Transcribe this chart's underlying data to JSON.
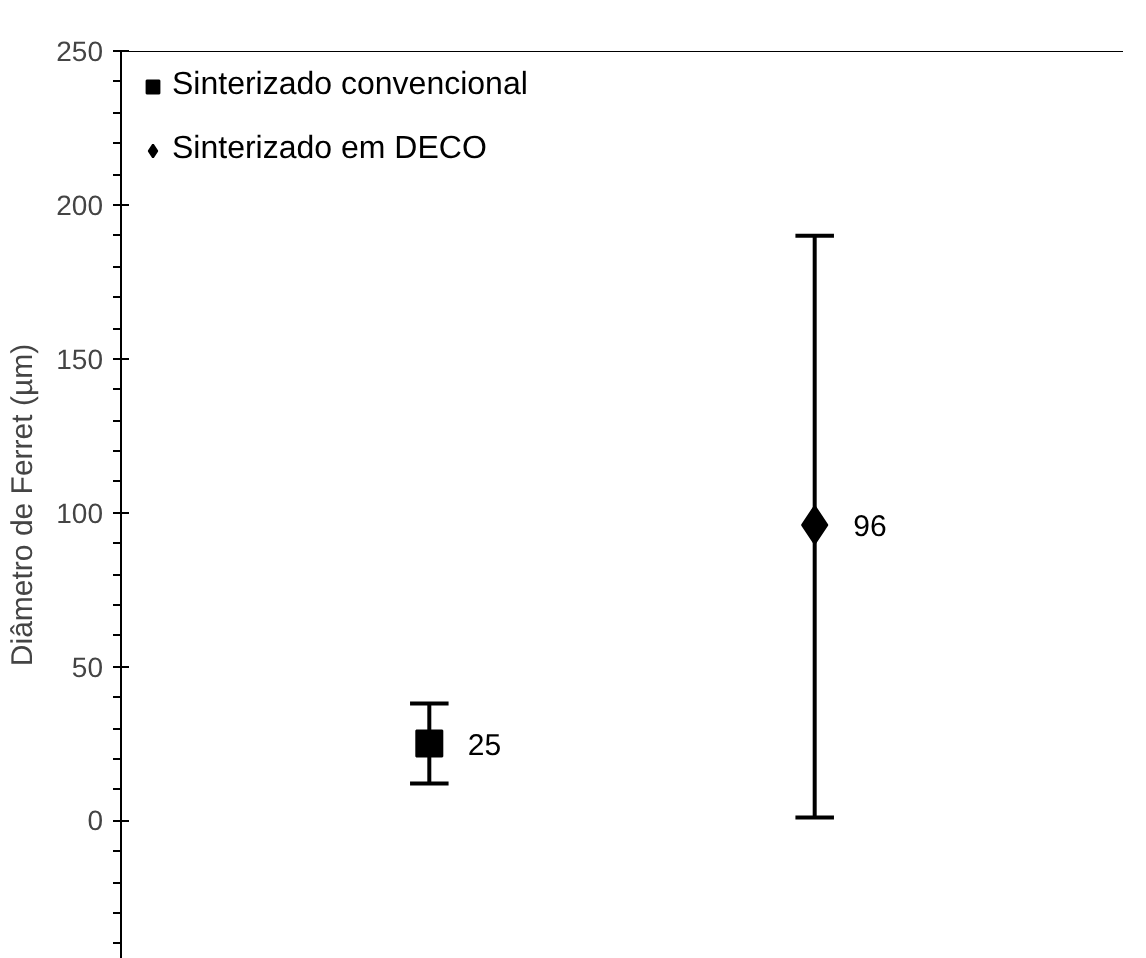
{
  "chart_data": {
    "type": "scatter",
    "ylabel": "Diâmetro de Ferret (µm)",
    "categories": [
      null,
      null
    ],
    "series": [
      {
        "name": "Sinterizado convencional",
        "color": "#000000",
        "marker": "square",
        "values": [
          25,
          null
        ],
        "errors": [
          [
            12,
            38
          ],
          null
        ]
      },
      {
        "name": "Sinterizado em DECO",
        "color": "#000000",
        "marker": "diamond",
        "values": [
          null,
          96
        ],
        "errors": [
          null,
          [
            1,
            190
          ]
        ]
      }
    ],
    "ylim": [
      -45,
      250
    ],
    "yticks": [
      0,
      50,
      100,
      150,
      200,
      250
    ],
    "tick_labels": "y",
    "data_labels": true,
    "legend": "top left",
    "grid": false
  }
}
